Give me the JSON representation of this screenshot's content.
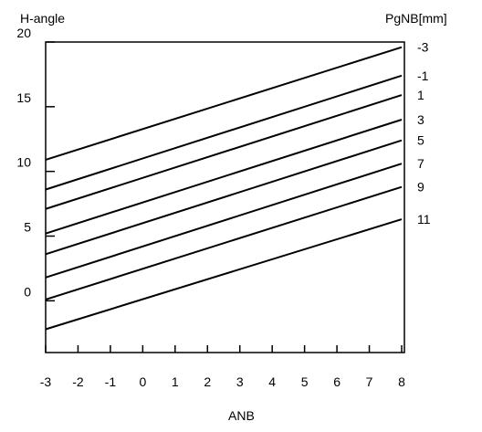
{
  "chart_data": {
    "type": "line",
    "ylabel": "H-angle",
    "xlabel": "ANB",
    "legend_title": "PgNB[mm]",
    "x_ticks": [
      -3,
      -2,
      -1,
      0,
      1,
      2,
      3,
      4,
      5,
      6,
      7,
      8
    ],
    "y_ticks": [
      0,
      5,
      10,
      15,
      20
    ],
    "xlim": [
      -3,
      8
    ],
    "ylim": [
      -4,
      20
    ],
    "grid": false,
    "legend_position": "right",
    "line_color": "#000000",
    "series": [
      {
        "name": "-3",
        "x": [
          -3,
          8
        ],
        "y": [
          10.9,
          19.6
        ]
      },
      {
        "name": "-1",
        "x": [
          -3,
          8
        ],
        "y": [
          8.6,
          17.4
        ]
      },
      {
        "name": "1",
        "x": [
          -3,
          8
        ],
        "y": [
          7.1,
          15.9
        ]
      },
      {
        "name": "3",
        "x": [
          -3,
          8
        ],
        "y": [
          5.2,
          14.0
        ]
      },
      {
        "name": "5",
        "x": [
          -3,
          8
        ],
        "y": [
          3.6,
          12.4
        ]
      },
      {
        "name": "7",
        "x": [
          -3,
          8
        ],
        "y": [
          1.8,
          10.6
        ]
      },
      {
        "name": "9",
        "x": [
          -3,
          8
        ],
        "y": [
          0.1,
          8.8
        ]
      },
      {
        "name": "11",
        "x": [
          -3,
          8
        ],
        "y": [
          -2.2,
          6.3
        ]
      }
    ]
  }
}
